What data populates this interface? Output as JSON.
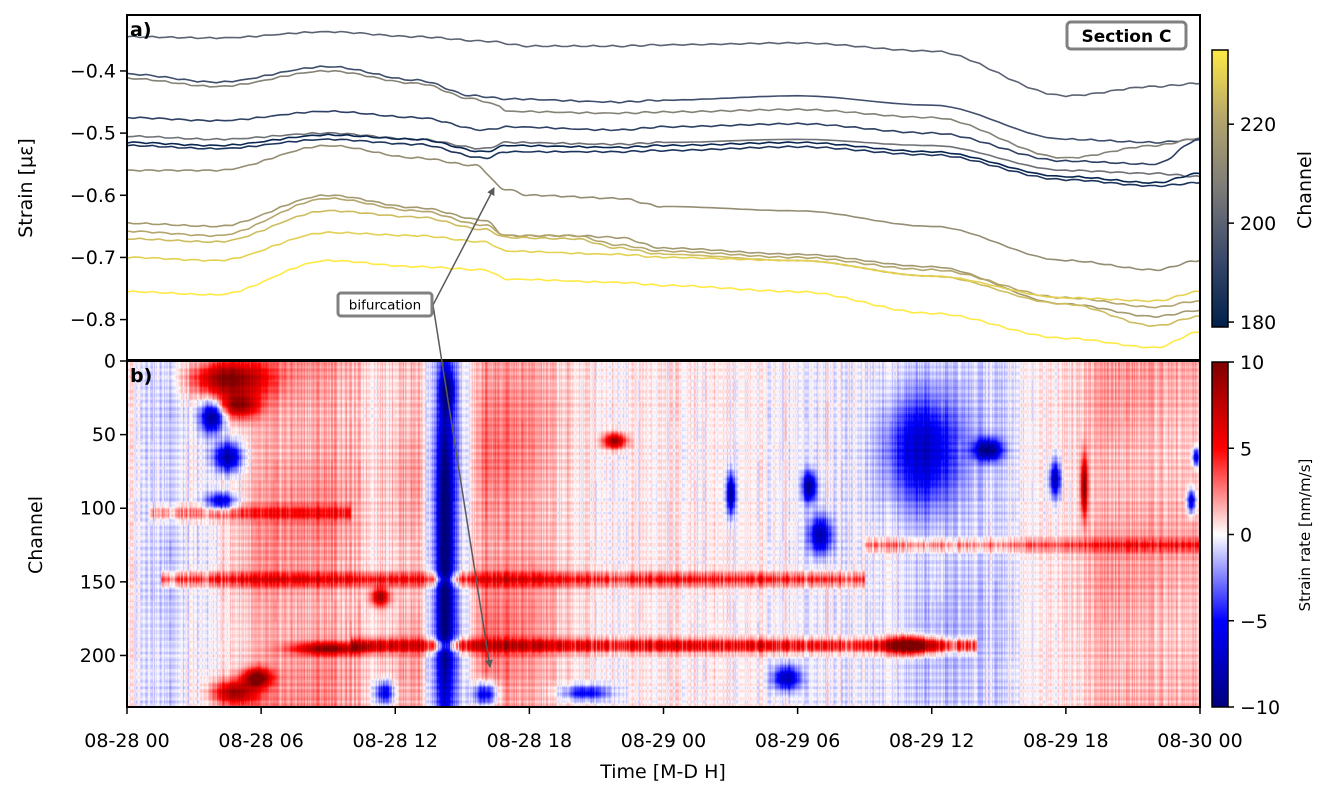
{
  "chart_data": [
    {
      "type": "line",
      "panel_label": "a)",
      "title": "Section C",
      "ylabel": "Strain [με]",
      "ylim": [
        -0.865,
        -0.31
      ],
      "yticks": [
        -0.4,
        -0.5,
        -0.6,
        -0.7,
        -0.8
      ],
      "ytick_labels": [
        "−0.4",
        "−0.5",
        "−0.6",
        "−0.7",
        "−0.8"
      ],
      "x_hours_range": [
        0,
        48
      ],
      "annotation": {
        "text": "bifurcation",
        "x_hour": 10.6,
        "y": -0.785
      },
      "colorbar": {
        "label": "Channel",
        "range": [
          179,
          235
        ],
        "ticks": [
          180,
          200,
          220
        ],
        "tick_labels": [
          "180",
          "200",
          "220"
        ],
        "colormap": [
          "#00204c",
          "#3a4a6b",
          "#7c7b78",
          "#b3a56c",
          "#ffe945"
        ]
      },
      "series": [
        {
          "channel": 200,
          "x": [
            0,
            4,
            9,
            13,
            16,
            18,
            22,
            24,
            30,
            36,
            42,
            46,
            48
          ],
          "values": [
            -0.345,
            -0.347,
            -0.337,
            -0.345,
            -0.352,
            -0.36,
            -0.36,
            -0.358,
            -0.355,
            -0.368,
            -0.44,
            -0.425,
            -0.42
          ]
        },
        {
          "channel": 194,
          "x": [
            0,
            4,
            9,
            13,
            15.5,
            17,
            22,
            24,
            30,
            36,
            42,
            46,
            48
          ],
          "values": [
            -0.405,
            -0.418,
            -0.393,
            -0.415,
            -0.44,
            -0.445,
            -0.45,
            -0.447,
            -0.44,
            -0.455,
            -0.51,
            -0.515,
            -0.51
          ]
        },
        {
          "channel": 209,
          "x": [
            0,
            4,
            9,
            13,
            15.5,
            16.6,
            17,
            22,
            24,
            30,
            36,
            42,
            46,
            48
          ],
          "values": [
            -0.412,
            -0.425,
            -0.4,
            -0.42,
            -0.445,
            -0.455,
            -0.465,
            -0.468,
            -0.466,
            -0.462,
            -0.475,
            -0.54,
            -0.52,
            -0.508
          ]
        },
        {
          "channel": 190,
          "x": [
            0,
            4,
            9,
            13,
            16,
            17,
            22,
            24,
            30,
            36,
            42,
            46,
            48
          ],
          "values": [
            -0.475,
            -0.48,
            -0.465,
            -0.475,
            -0.495,
            -0.49,
            -0.495,
            -0.49,
            -0.485,
            -0.5,
            -0.545,
            -0.55,
            -0.51
          ]
        },
        {
          "channel": 204,
          "x": [
            0,
            4,
            9,
            13,
            16,
            17,
            22,
            24,
            30,
            36,
            42,
            46,
            48
          ],
          "values": [
            -0.505,
            -0.51,
            -0.5,
            -0.51,
            -0.525,
            -0.515,
            -0.518,
            -0.515,
            -0.51,
            -0.52,
            -0.56,
            -0.565,
            -0.57
          ]
        },
        {
          "channel": 181,
          "x": [
            0,
            4,
            9,
            13,
            16,
            17,
            22,
            24,
            30,
            36,
            42,
            46,
            48
          ],
          "values": [
            -0.515,
            -0.52,
            -0.503,
            -0.51,
            -0.53,
            -0.52,
            -0.523,
            -0.52,
            -0.515,
            -0.53,
            -0.57,
            -0.58,
            -0.565
          ]
        },
        {
          "channel": 186,
          "x": [
            0,
            4,
            9,
            13,
            16,
            17,
            22,
            24,
            30,
            36,
            42,
            46,
            48
          ],
          "values": [
            -0.52,
            -0.525,
            -0.51,
            -0.518,
            -0.54,
            -0.53,
            -0.53,
            -0.528,
            -0.522,
            -0.535,
            -0.575,
            -0.585,
            -0.58
          ]
        },
        {
          "channel": 213,
          "x": [
            0,
            4,
            9,
            13,
            15.6,
            16.9,
            18,
            22,
            24,
            30,
            36,
            42,
            46,
            48
          ],
          "values": [
            -0.56,
            -0.56,
            -0.52,
            -0.54,
            -0.552,
            -0.59,
            -0.6,
            -0.605,
            -0.618,
            -0.625,
            -0.65,
            -0.705,
            -0.72,
            -0.705
          ]
        },
        {
          "channel": 217,
          "x": [
            0,
            4,
            9,
            13,
            16,
            16.9,
            20,
            22,
            24,
            30,
            36,
            42,
            46,
            48
          ],
          "values": [
            -0.645,
            -0.65,
            -0.6,
            -0.62,
            -0.64,
            -0.665,
            -0.665,
            -0.668,
            -0.685,
            -0.695,
            -0.715,
            -0.775,
            -0.795,
            -0.785
          ]
        },
        {
          "channel": 221,
          "x": [
            0,
            4,
            9,
            13,
            16,
            17,
            20,
            22,
            24,
            30,
            36,
            42,
            46,
            48
          ],
          "values": [
            -0.658,
            -0.665,
            -0.605,
            -0.625,
            -0.648,
            -0.665,
            -0.665,
            -0.68,
            -0.69,
            -0.7,
            -0.72,
            -0.765,
            -0.78,
            -0.77
          ]
        },
        {
          "channel": 226,
          "x": [
            0,
            4,
            9,
            13,
            16,
            17,
            20,
            22,
            24,
            30,
            36,
            42,
            46,
            48
          ],
          "values": [
            -0.67,
            -0.675,
            -0.625,
            -0.635,
            -0.655,
            -0.668,
            -0.67,
            -0.685,
            -0.695,
            -0.705,
            -0.73,
            -0.775,
            -0.81,
            -0.795
          ]
        },
        {
          "channel": 230,
          "x": [
            0,
            4,
            9,
            13,
            16,
            17,
            22,
            24,
            30,
            36,
            42,
            46,
            48
          ],
          "values": [
            -0.7,
            -0.705,
            -0.66,
            -0.665,
            -0.675,
            -0.69,
            -0.695,
            -0.7,
            -0.705,
            -0.73,
            -0.765,
            -0.77,
            -0.755
          ]
        },
        {
          "channel": 235,
          "x": [
            0,
            4,
            9,
            13,
            16,
            17,
            22,
            24,
            30,
            36,
            42,
            46,
            48
          ],
          "values": [
            -0.755,
            -0.76,
            -0.705,
            -0.715,
            -0.72,
            -0.735,
            -0.74,
            -0.745,
            -0.755,
            -0.79,
            -0.83,
            -0.845,
            -0.82
          ]
        }
      ]
    },
    {
      "type": "heatmap",
      "panel_label": "b)",
      "ylabel": "Channel",
      "xlabel": "Time [M-D H]",
      "ylim": [
        235,
        0
      ],
      "yticks": [
        0,
        50,
        100,
        150,
        200
      ],
      "ytick_labels": [
        "0",
        "50",
        "100",
        "150",
        "200"
      ],
      "x_hours_range": [
        0,
        48
      ],
      "xticks_hours": [
        0,
        6,
        12,
        18,
        24,
        30,
        36,
        42,
        48
      ],
      "xtick_labels": [
        "08-28 00",
        "08-28 06",
        "08-28 12",
        "08-28 18",
        "08-29 00",
        "08-29 06",
        "08-29 12",
        "08-29 18",
        "08-30 00"
      ],
      "colorbar": {
        "label": "Strain rate [nm/m/s]",
        "range": [
          -10,
          10
        ],
        "ticks": [
          10,
          5,
          0,
          -5,
          -10
        ],
        "tick_labels": [
          "10",
          "5",
          "0",
          "−5",
          "−10"
        ],
        "colormap": [
          "#00007f",
          "#0000ff",
          "#ffffff",
          "#ff0000",
          "#7f0000"
        ]
      },
      "time_trend": [
        {
          "hour": 0,
          "value": 0.5
        },
        {
          "hour": 1.5,
          "value": -1.2
        },
        {
          "hour": 3.5,
          "value": -0.5
        },
        {
          "hour": 5,
          "value": 1.5
        },
        {
          "hour": 7,
          "value": 2.5
        },
        {
          "hour": 9,
          "value": 2.8
        },
        {
          "hour": 11,
          "value": 1.0
        },
        {
          "hour": 13,
          "value": 2.5
        },
        {
          "hour": 14.2,
          "value": -5.0
        },
        {
          "hour": 16,
          "value": 3.5
        },
        {
          "hour": 18,
          "value": 2.5
        },
        {
          "hour": 20,
          "value": 0.8
        },
        {
          "hour": 22,
          "value": 0.3
        },
        {
          "hour": 24,
          "value": 0.5
        },
        {
          "hour": 28,
          "value": 0.2
        },
        {
          "hour": 31,
          "value": -0.3
        },
        {
          "hour": 34,
          "value": -0.5
        },
        {
          "hour": 36,
          "value": -2.0
        },
        {
          "hour": 38,
          "value": -1.5
        },
        {
          "hour": 40,
          "value": -0.2
        },
        {
          "hour": 42,
          "value": 1.0
        },
        {
          "hour": 44,
          "value": 2.2
        },
        {
          "hour": 48,
          "value": 1.8
        }
      ],
      "blobs": [
        {
          "hour": 4.5,
          "channel": 12,
          "value": 9.5,
          "dh": 1.6,
          "dc": 12
        },
        {
          "hour": 5,
          "channel": 30,
          "value": 8,
          "dh": 0.8,
          "dc": 8
        },
        {
          "hour": 3.8,
          "channel": 38,
          "value": -9,
          "dh": 0.5,
          "dc": 10
        },
        {
          "hour": 4.5,
          "channel": 65,
          "value": -9,
          "dh": 0.6,
          "dc": 10
        },
        {
          "hour": 4.2,
          "channel": 95,
          "value": -7,
          "dh": 0.6,
          "dc": 6
        },
        {
          "hour": 14.2,
          "channel": 130,
          "value": -9.5,
          "dh": 0.35,
          "dc": 100
        },
        {
          "hour": 14.3,
          "channel": 20,
          "value": -7,
          "dh": 0.3,
          "dc": 14
        },
        {
          "hour": 5.8,
          "channel": 215,
          "value": 9.5,
          "dh": 0.6,
          "dc": 6
        },
        {
          "hour": 4.8,
          "channel": 225,
          "value": 8,
          "dh": 1.0,
          "dc": 8
        },
        {
          "hour": 21.8,
          "channel": 54,
          "value": 9,
          "dh": 0.5,
          "dc": 5
        },
        {
          "hour": 35.5,
          "channel": 60,
          "value": -6,
          "dh": 1.5,
          "dc": 35
        },
        {
          "hour": 38.5,
          "channel": 60,
          "value": -9.5,
          "dh": 0.6,
          "dc": 7
        },
        {
          "hour": 35,
          "channel": 193,
          "value": 9.5,
          "dh": 1.0,
          "dc": 6
        },
        {
          "hour": 16,
          "channel": 226,
          "value": -8,
          "dh": 0.5,
          "dc": 8
        },
        {
          "hour": 20.5,
          "channel": 225,
          "value": -6,
          "dh": 1.0,
          "dc": 5
        },
        {
          "hour": 11.5,
          "channel": 225,
          "value": -7,
          "dh": 0.4,
          "dc": 8
        },
        {
          "hour": 9,
          "channel": 195,
          "value": 8,
          "dh": 1.5,
          "dc": 4
        },
        {
          "hour": 27,
          "channel": 90,
          "value": -9,
          "dh": 0.2,
          "dc": 14
        },
        {
          "hour": 30.5,
          "channel": 85,
          "value": -9,
          "dh": 0.3,
          "dc": 10
        },
        {
          "hour": 31,
          "channel": 118,
          "value": -8,
          "dh": 0.5,
          "dc": 12
        },
        {
          "hour": 41.5,
          "channel": 80,
          "value": -8,
          "dh": 0.25,
          "dc": 12
        },
        {
          "hour": 42.8,
          "channel": 85,
          "value": 9,
          "dh": 0.15,
          "dc": 20
        },
        {
          "hour": 47.6,
          "channel": 95,
          "value": -8,
          "dh": 0.2,
          "dc": 8
        },
        {
          "hour": 47.8,
          "channel": 65,
          "value": -8,
          "dh": 0.15,
          "dc": 6
        },
        {
          "hour": 11.3,
          "channel": 160,
          "value": 8,
          "dh": 0.4,
          "dc": 6
        },
        {
          "hour": 29.5,
          "channel": 215,
          "value": -8,
          "dh": 0.6,
          "dc": 8
        }
      ],
      "bands": [
        {
          "channel": 148,
          "hour_from": 1.5,
          "hour_to": 33,
          "value": 4.2
        },
        {
          "channel": 193,
          "hour_from": 10,
          "hour_to": 38,
          "value": 5.5
        },
        {
          "channel": 103,
          "hour_from": 1,
          "hour_to": 10,
          "value": 3.0
        },
        {
          "channel": 125,
          "hour_from": 33,
          "hour_to": 48,
          "value": 3.0
        }
      ]
    }
  ]
}
